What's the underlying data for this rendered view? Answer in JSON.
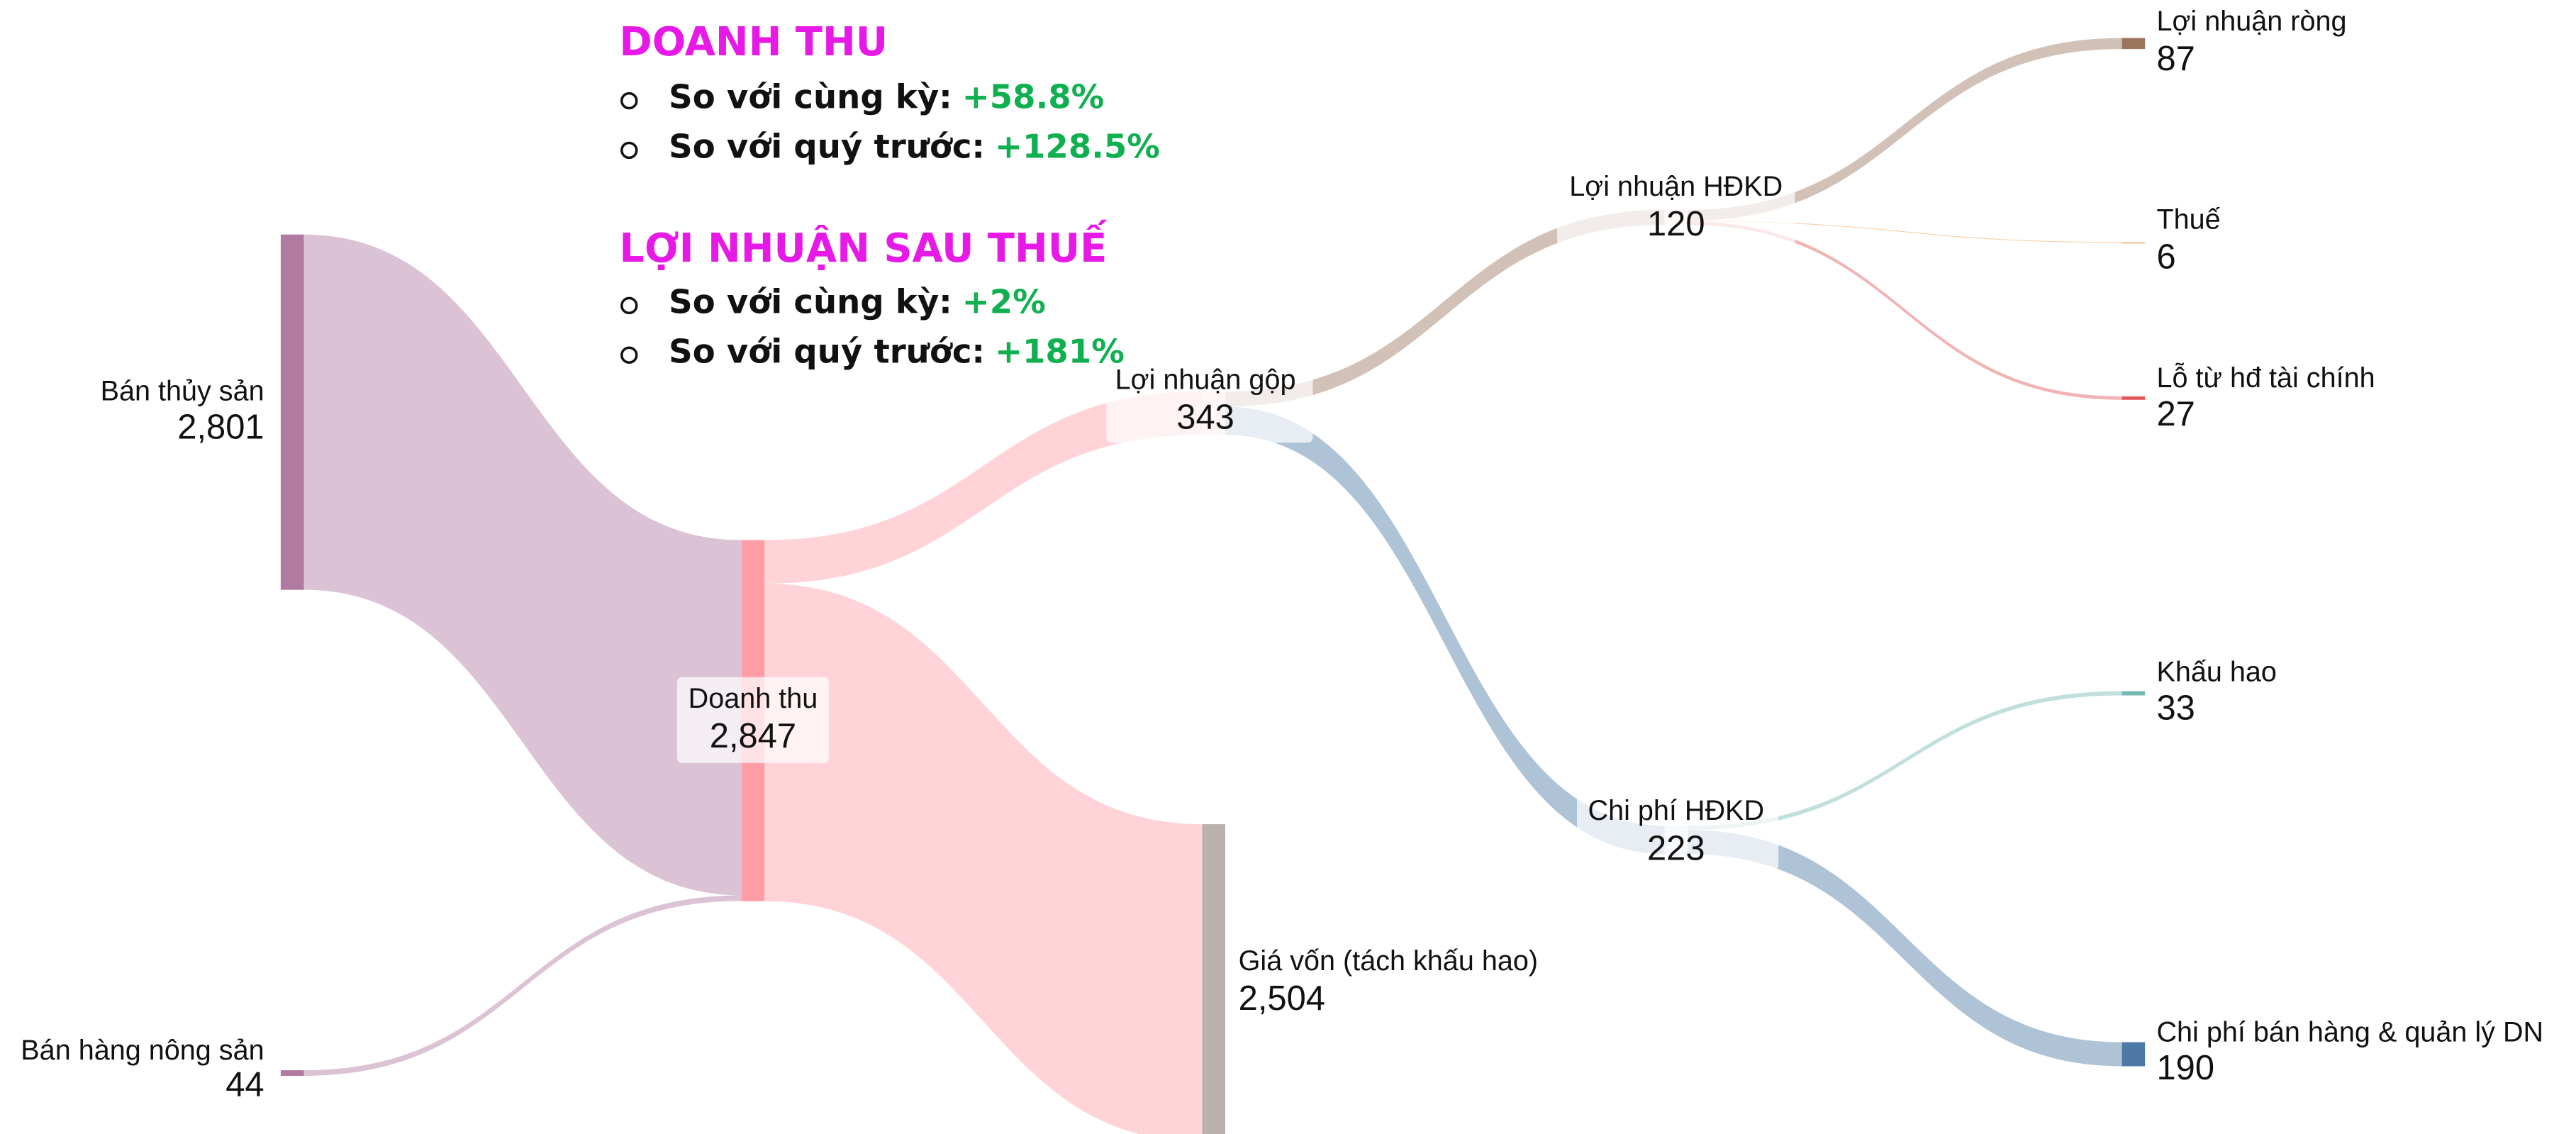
{
  "chart_data": {
    "type": "sankey",
    "nodes": [
      "Bán thủy sản",
      "Bán hàng nông sản",
      "Doanh thu",
      "Lợi nhuận gộp",
      "Giá vốn (tách khấu hao)",
      "Lợi nhuận HĐKD",
      "Chi phí HĐKD",
      "Lợi nhuận ròng",
      "Thuế",
      "Lỗ từ hđ tài chính",
      "Khấu hao",
      "Chi phí bán hàng & quản lý DN"
    ],
    "node_values": [
      2801,
      44,
      2847,
      343,
      2504,
      120,
      223,
      87,
      6,
      27,
      33,
      190
    ],
    "node_value_labels": [
      "2,801",
      "44",
      "2,847",
      "343",
      "2,504",
      "120",
      "223",
      "87",
      "6",
      "27",
      "33",
      "190"
    ],
    "node_colors": [
      "#b07aa1",
      "#b07aa1",
      "#ff9da7",
      "#fbe3e7",
      "#bab0ac",
      "#f3ebe8",
      "#e6ecf3",
      "#9c755f",
      "#f7c89b",
      "#e15759",
      "#76b7b2",
      "#4e79a7"
    ],
    "links": {
      "sources": [
        0,
        1,
        2,
        2,
        3,
        3,
        5,
        5,
        5,
        6,
        6
      ],
      "targets": [
        2,
        2,
        3,
        4,
        5,
        6,
        7,
        8,
        9,
        10,
        11
      ],
      "values": [
        2801,
        44,
        343,
        2504,
        120,
        223,
        87,
        6,
        27,
        33,
        190
      ],
      "colors": [
        "#b07aa1",
        "#b07aa1",
        "#ff9da7",
        "#ff9da7",
        "#9c755f",
        "#4e79a7",
        "#9c755f",
        "#f28e2b",
        "#e15759",
        "#76b7b2",
        "#4e79a7"
      ]
    },
    "annotations": [
      {
        "title": "DOANH THU",
        "items": [
          {
            "label": "So với cùng kỳ:",
            "value": "+58.8%"
          },
          {
            "label": "So với quý trước:",
            "value": "+128.5%"
          }
        ]
      },
      {
        "title": "LỢI NHUẬN SAU THUẾ",
        "items": [
          {
            "label": "So với cùng kỳ:",
            "value": "+2%"
          },
          {
            "label": "So với quý trước:",
            "value": "+181%"
          }
        ]
      }
    ]
  }
}
